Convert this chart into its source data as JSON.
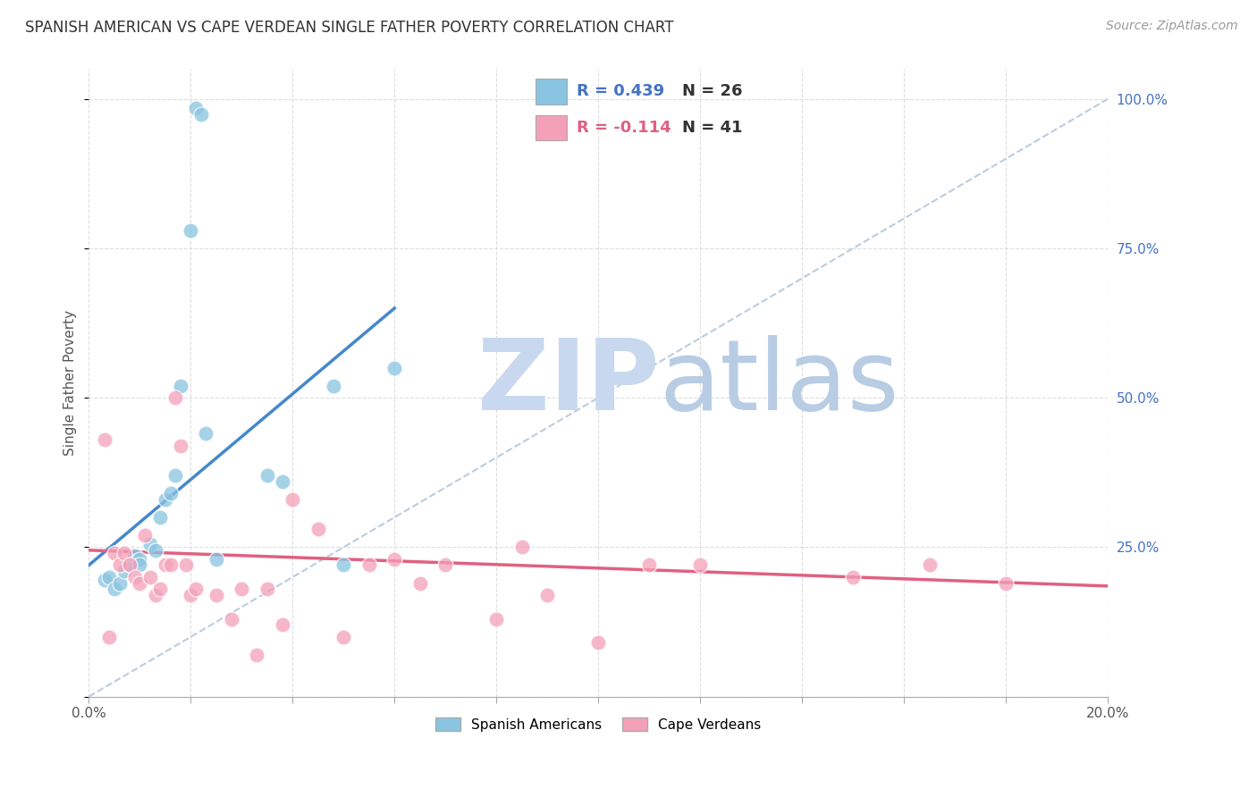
{
  "title": "SPANISH AMERICAN VS CAPE VERDEAN SINGLE FATHER POVERTY CORRELATION CHART",
  "source": "Source: ZipAtlas.com",
  "ylabel": "Single Father Poverty",
  "xlim": [
    0.0,
    0.2
  ],
  "ylim": [
    0.0,
    1.05
  ],
  "ytick_vals": [
    0.0,
    0.25,
    0.5,
    0.75,
    1.0
  ],
  "xtick_vals": [
    0.0,
    0.02,
    0.04,
    0.06,
    0.08,
    0.1,
    0.12,
    0.14,
    0.16,
    0.18,
    0.2
  ],
  "blue_color": "#89c4e1",
  "pink_color": "#f4a0b8",
  "blue_line_color": "#4488cc",
  "pink_line_color": "#e06080",
  "dashed_line_color": "#bbccdd",
  "grid_color": "#dddddd",
  "bg_color": "#ffffff",
  "watermark_zip": "ZIP",
  "watermark_atlas": "atlas",
  "watermark_color_zip": "#c8d8ee",
  "watermark_color_atlas": "#b8cce4",
  "legend_R_blue": "0.439",
  "legend_N_blue": "26",
  "legend_R_pink": "-0.114",
  "legend_N_pink": "41",
  "blue_scatter_x": [
    0.021,
    0.022,
    0.003,
    0.004,
    0.005,
    0.006,
    0.007,
    0.008,
    0.009,
    0.01,
    0.01,
    0.012,
    0.013,
    0.014,
    0.015,
    0.016,
    0.017,
    0.018,
    0.02,
    0.023,
    0.025,
    0.035,
    0.038,
    0.048,
    0.05,
    0.06
  ],
  "blue_scatter_y": [
    0.985,
    0.975,
    0.195,
    0.2,
    0.18,
    0.19,
    0.21,
    0.22,
    0.235,
    0.23,
    0.22,
    0.255,
    0.245,
    0.3,
    0.33,
    0.34,
    0.37,
    0.52,
    0.78,
    0.44,
    0.23,
    0.37,
    0.36,
    0.52,
    0.22,
    0.55
  ],
  "pink_scatter_x": [
    0.003,
    0.004,
    0.005,
    0.006,
    0.007,
    0.008,
    0.009,
    0.01,
    0.011,
    0.012,
    0.013,
    0.014,
    0.015,
    0.016,
    0.017,
    0.018,
    0.019,
    0.02,
    0.021,
    0.025,
    0.028,
    0.03,
    0.033,
    0.035,
    0.038,
    0.04,
    0.045,
    0.05,
    0.055,
    0.06,
    0.065,
    0.07,
    0.08,
    0.085,
    0.09,
    0.1,
    0.11,
    0.12,
    0.15,
    0.165,
    0.18
  ],
  "pink_scatter_y": [
    0.43,
    0.1,
    0.24,
    0.22,
    0.24,
    0.22,
    0.2,
    0.19,
    0.27,
    0.2,
    0.17,
    0.18,
    0.22,
    0.22,
    0.5,
    0.42,
    0.22,
    0.17,
    0.18,
    0.17,
    0.13,
    0.18,
    0.07,
    0.18,
    0.12,
    0.33,
    0.28,
    0.1,
    0.22,
    0.23,
    0.19,
    0.22,
    0.13,
    0.25,
    0.17,
    0.09,
    0.22,
    0.22,
    0.2,
    0.22,
    0.19
  ],
  "blue_line_x": [
    0.0,
    0.06
  ],
  "blue_line_y": [
    0.22,
    0.65
  ],
  "pink_line_x": [
    0.0,
    0.2
  ],
  "pink_line_y": [
    0.245,
    0.185
  ],
  "diag_line_x": [
    0.0,
    0.2
  ],
  "diag_line_y": [
    0.0,
    1.0
  ]
}
